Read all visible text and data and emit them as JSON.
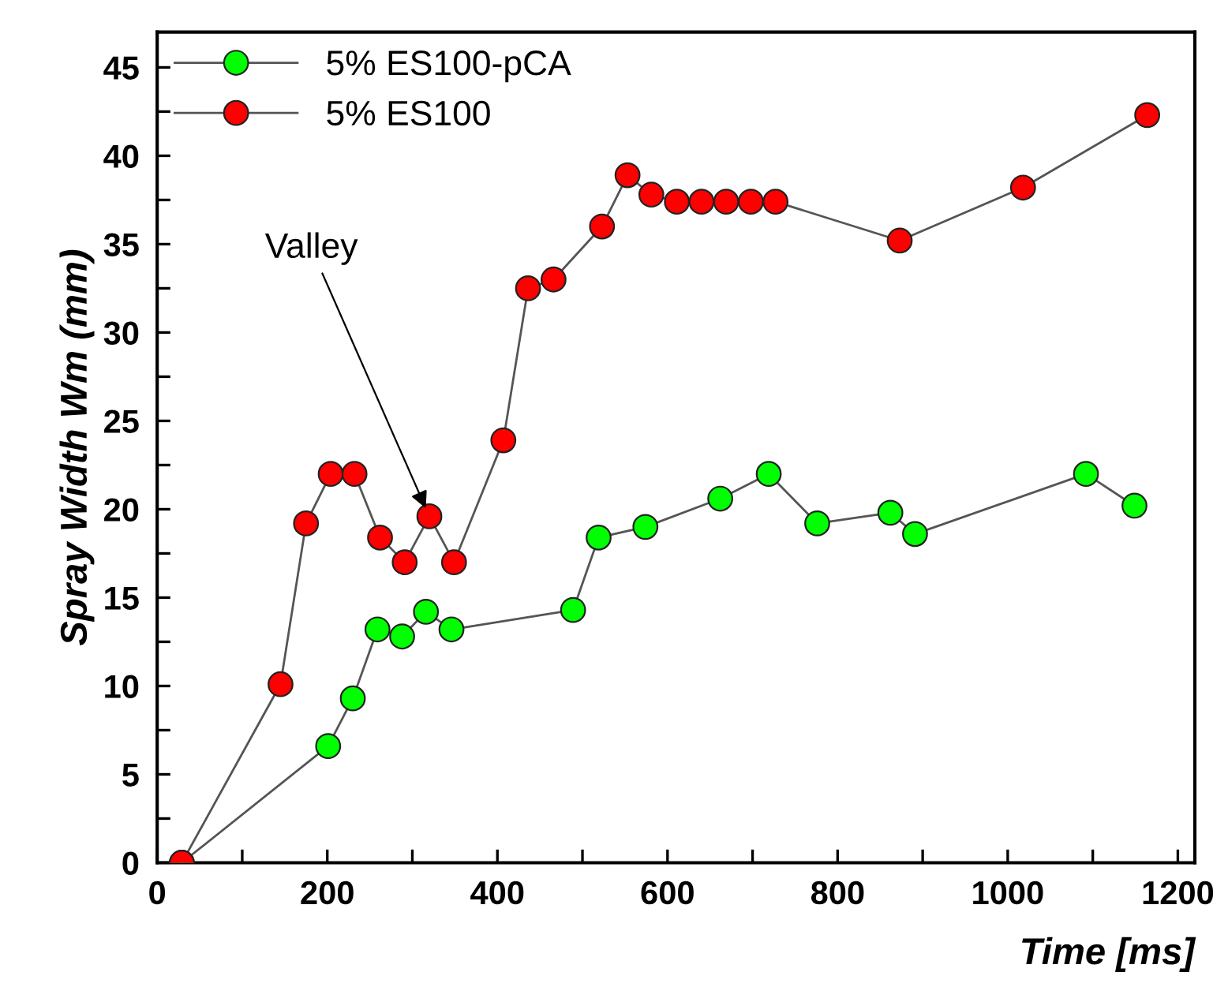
{
  "chart_data": {
    "type": "line",
    "xlabel": "Time [ms]",
    "ylabel": "Spray Width Wm (mm)",
    "xlim": [
      0,
      1220
    ],
    "ylim": [
      0,
      47
    ],
    "xticks": [
      0,
      {
        "value": 100,
        "label": null
      },
      200,
      {
        "value": 300,
        "label": null
      },
      400,
      {
        "value": 500,
        "label": null
      },
      600,
      {
        "value": 700,
        "label": null
      },
      800,
      {
        "value": 900,
        "label": null
      },
      1000,
      {
        "value": 1100,
        "label": null
      },
      1200
    ],
    "yticks": [
      0,
      {
        "value": 2.5,
        "label": null
      },
      5,
      {
        "value": 7.5,
        "label": null
      },
      10,
      {
        "value": 12.5,
        "label": null
      },
      15,
      {
        "value": 17.5,
        "label": null
      },
      20,
      {
        "value": 22.5,
        "label": null
      },
      25,
      {
        "value": 27.5,
        "label": null
      },
      30,
      {
        "value": 32.5,
        "label": null
      },
      35,
      {
        "value": 37.5,
        "label": null
      },
      40,
      {
        "value": 42.5,
        "label": null
      },
      45
    ],
    "marker": "circle",
    "line_style": "solid",
    "grid": false,
    "legend": "top left",
    "series": [
      {
        "name": "5% ES100-pCA",
        "color": "#00ff00",
        "x": [
          29,
          201,
          230,
          259,
          288,
          316,
          346,
          489,
          519,
          574,
          662,
          719,
          776,
          862,
          891,
          1092,
          1149
        ],
        "values": [
          0,
          6.6,
          9.3,
          13.2,
          12.8,
          14.2,
          13.2,
          14.3,
          18.4,
          19.0,
          20.6,
          22.0,
          19.2,
          19.8,
          18.6,
          22.0,
          20.2
        ]
      },
      {
        "name": "5% ES100",
        "color": "#ff0000",
        "x": [
          29,
          145,
          175,
          204,
          232,
          262,
          291,
          320,
          349,
          407,
          436,
          466,
          523,
          553,
          581,
          611,
          640,
          669,
          698,
          727,
          873,
          1018,
          1164
        ],
        "values": [
          0,
          10.1,
          19.2,
          22.0,
          22.0,
          18.4,
          17.0,
          19.6,
          17.0,
          23.9,
          32.5,
          33.0,
          36.0,
          38.9,
          37.8,
          37.4,
          37.4,
          37.4,
          37.4,
          37.4,
          35.2,
          38.2,
          42.3
        ]
      }
    ],
    "annotations": [
      {
        "text": "Valley",
        "x": 320,
        "y": 19.6
      }
    ]
  }
}
